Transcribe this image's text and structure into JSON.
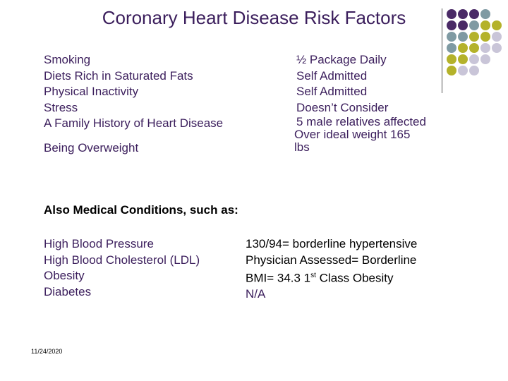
{
  "title": "Coronary Heart Disease Risk Factors",
  "colors": {
    "dark_purple": "#4a2a66",
    "slate": "#7f9aa3",
    "olive": "#b4b22a",
    "lavender": "#c9c5d8"
  },
  "risk_factors": [
    "Smoking",
    "Diets Rich in Saturated Fats",
    "Physical Inactivity",
    "Stress",
    "A Family History of Heart Disease",
    "Being Overweight"
  ],
  "risk_values": [
    "½ Package Daily",
    "Self Admitted",
    "Self Admitted",
    "Doesn’t Consider",
    "5 male relatives affected",
    "Over ideal weight 165 lbs"
  ],
  "medical_heading": "Also Medical Conditions, such as:",
  "medical_conditions": [
    "High Blood Pressure",
    "High Blood Cholesterol (LDL)",
    "Obesity",
    "Diabetes"
  ],
  "medical_values": {
    "bp": "130/94= borderline hypertensive",
    "ldl": "Physician Assessed= Borderline",
    "bmi_prefix": "BMI= 34.3 1",
    "bmi_sup": "st",
    "bmi_suffix": " Class Obesity",
    "diabetes": "N/A"
  },
  "footer_date": "11/24/2020"
}
